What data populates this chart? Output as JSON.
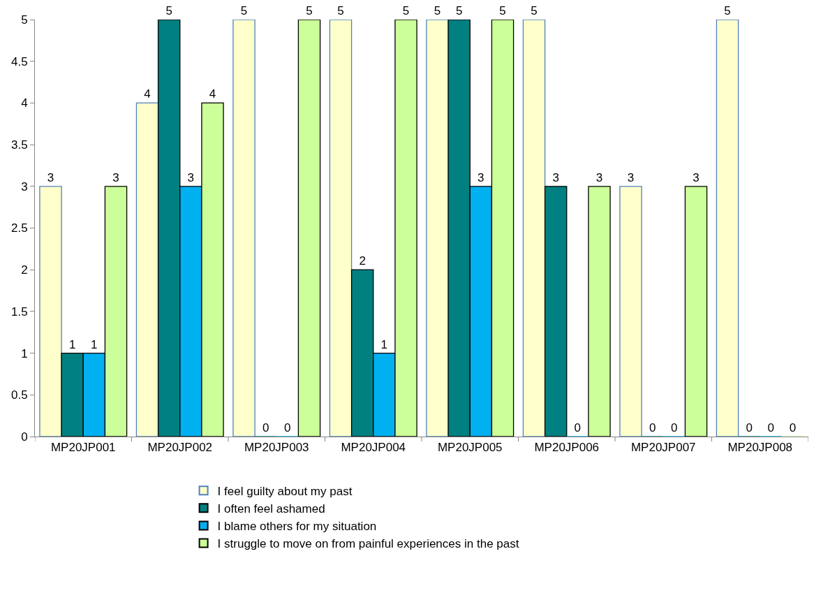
{
  "chart_data": {
    "type": "bar",
    "categories": [
      "MP20JP001",
      "MP20JP002",
      "MP20JP003",
      "MP20JP004",
      "MP20JP005",
      "MP20JP006",
      "MP20JP007",
      "MP20JP008"
    ],
    "series": [
      {
        "name": "I feel guilty about my past",
        "color": "#ffffcc",
        "values": [
          3,
          4,
          5,
          5,
          5,
          5,
          3,
          5
        ]
      },
      {
        "name": "I often feel ashamed",
        "color": "#008080",
        "values": [
          1,
          5,
          0,
          2,
          5,
          3,
          0,
          0
        ]
      },
      {
        "name": "I blame others for my situation",
        "color": "#00b0f0",
        "values": [
          1,
          3,
          0,
          1,
          3,
          0,
          0,
          0
        ]
      },
      {
        "name": "I struggle to move on from painful experiences in the past",
        "color": "#ccff99",
        "values": [
          3,
          4,
          5,
          5,
          5,
          3,
          3,
          0
        ]
      }
    ],
    "ylim": [
      0,
      5
    ],
    "yticks": [
      0,
      0.5,
      1,
      1.5,
      2,
      2.5,
      3,
      3.5,
      4,
      4.5,
      5
    ],
    "grid": false,
    "legend": "bottom",
    "data_labels": true
  }
}
